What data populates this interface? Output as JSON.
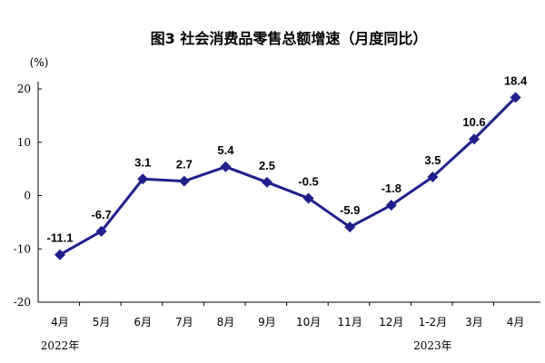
{
  "chart_data": {
    "type": "line",
    "title": "图3 社会消费品零售总额增速（月度同比）",
    "ylabel": "(%)",
    "categories": [
      "4月",
      "5月",
      "6月",
      "7月",
      "8月",
      "9月",
      "10月",
      "11月",
      "12月",
      "1-2月",
      "3月",
      "4月"
    ],
    "year_labels": [
      {
        "category_index": 0,
        "text": "2022年"
      },
      {
        "category_index": 9,
        "text": "2023年"
      }
    ],
    "series": [
      {
        "values": [
          -11.1,
          -6.7,
          3.1,
          2.7,
          5.4,
          2.5,
          -0.5,
          -5.9,
          -1.8,
          3.5,
          10.6,
          18.4
        ]
      }
    ],
    "value_labels": [
      "-11.1",
      "-6.7",
      "3.1",
      "2.7",
      "5.4",
      "2.5",
      "-0.5",
      "-5.9",
      "-1.8",
      "3.5",
      "10.6",
      "18.4"
    ],
    "yticks": [
      20,
      10,
      0,
      -10,
      -20
    ],
    "ylim": [
      -20,
      20
    ],
    "grid": false,
    "colors": {
      "line": "#1f1f8c",
      "marker": "#1f1f8c",
      "axis": "#000000"
    }
  }
}
